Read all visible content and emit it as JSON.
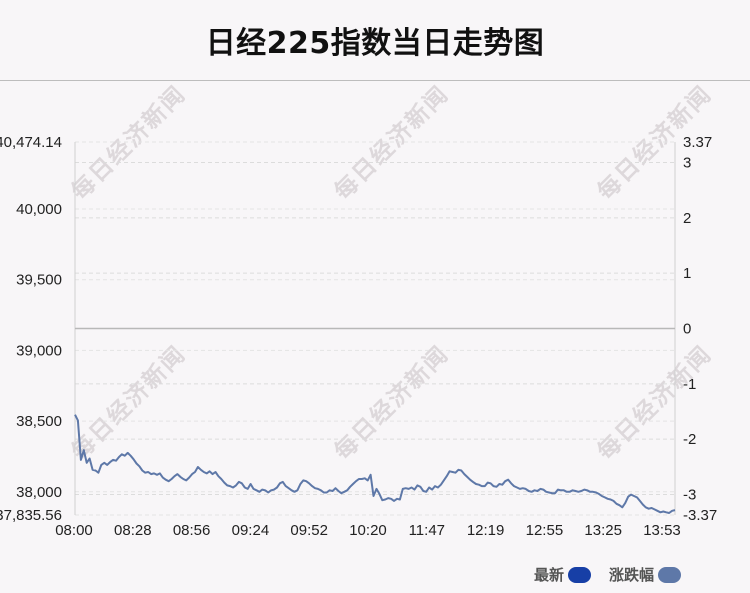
{
  "title": "日经225指数当日走势图",
  "watermark": "每日经济新闻",
  "legend": [
    {
      "label": "最新",
      "color": "#173fa6"
    },
    {
      "label": "涨跌幅",
      "color": "#5e78a8"
    }
  ],
  "chart_data": {
    "type": "line",
    "title": "日经225指数当日走势图",
    "x_ticks": [
      "08:00",
      "08:28",
      "08:56",
      "09:24",
      "09:52",
      "10:20",
      "11:47",
      "12:19",
      "12:55",
      "13:25",
      "13:53"
    ],
    "y_left_ticks": [
      "40,474.14",
      "40,000",
      "39,500",
      "39,000",
      "38,500",
      "38,000",
      "37,835.56"
    ],
    "y_left_range": [
      37835.56,
      40474.14
    ],
    "y_right_ticks": [
      "3.37",
      "3",
      "2",
      "1",
      "0",
      "-1",
      "-2",
      "-3",
      "-3.37"
    ],
    "y_right_range": [
      -3.37,
      3.37
    ],
    "reference_line": 39155,
    "grid": true,
    "line_color": "#5e78a8",
    "series": [
      {
        "name": "最新",
        "values": [
          38545,
          38505,
          38225,
          38295,
          38205,
          38235,
          38155,
          38150,
          38135,
          38190,
          38205,
          38190,
          38210,
          38225,
          38220,
          38245,
          38265,
          38255,
          38275,
          38255,
          38230,
          38200,
          38180,
          38150,
          38135,
          38140,
          38125,
          38130,
          38120,
          38130,
          38100,
          38085,
          38075,
          38090,
          38110,
          38125,
          38105,
          38090,
          38080,
          38100,
          38125,
          38140,
          38175,
          38155,
          38140,
          38130,
          38145,
          38125,
          38140,
          38110,
          38090,
          38065,
          38045,
          38040,
          38030,
          38045,
          38070,
          38060,
          38030,
          38020,
          38055,
          38020,
          38010,
          38000,
          38015,
          38010,
          37995,
          38010,
          38015,
          38030,
          38060,
          38070,
          38040,
          38025,
          38010,
          38000,
          38010,
          38055,
          38080,
          38075,
          38060,
          38040,
          38025,
          38020,
          38010,
          37995,
          37995,
          38010,
          38005,
          38025,
          38005,
          37990,
          38000,
          38010,
          38035,
          38055,
          38075,
          38090,
          38090,
          38095,
          38080,
          38120,
          37970,
          38020,
          37985,
          37940,
          37945,
          37955,
          37950,
          37935,
          37950,
          37945,
          38020,
          38025,
          38020,
          38030,
          38015,
          38045,
          38035,
          38005,
          38000,
          38030,
          38015,
          38040,
          38030,
          38050,
          38080,
          38110,
          38145,
          38140,
          38135,
          38155,
          38150,
          38125,
          38105,
          38085,
          38070,
          38055,
          38050,
          38040,
          38040,
          38065,
          38060,
          38040,
          38035,
          38055,
          38050,
          38075,
          38085,
          38060,
          38040,
          38030,
          38020,
          38025,
          38020,
          38005,
          38000,
          38010,
          38005,
          38020,
          38015,
          38000,
          37995,
          37990,
          37990,
          38015,
          38010,
          38010,
          38000,
          38000,
          38010,
          38005,
          38000,
          38005,
          38015,
          38010,
          38000,
          38000,
          37995,
          37985,
          37970,
          37960,
          37950,
          37945,
          37935,
          37915,
          37905,
          37890,
          37920,
          37965,
          37980,
          37970,
          37960,
          37935,
          37910,
          37890,
          37880,
          37885,
          37875,
          37865,
          37855,
          37860,
          37855,
          37850,
          37865,
          37870
        ]
      }
    ]
  }
}
